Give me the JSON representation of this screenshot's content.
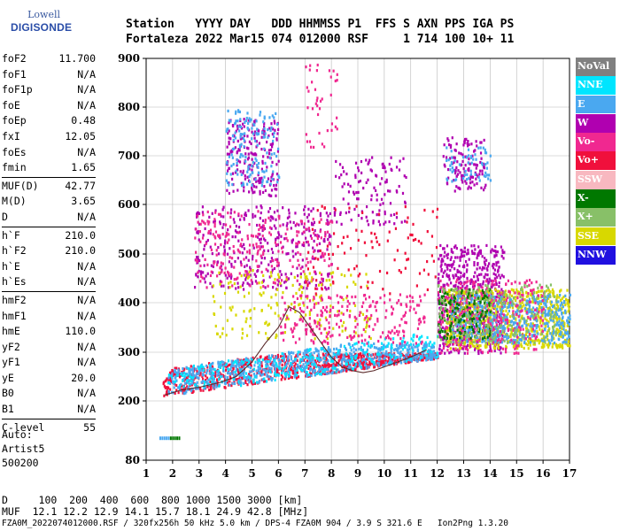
{
  "logo": {
    "line1": "Lowell",
    "line2": "DIGISONDE"
  },
  "header": {
    "line1": "Station   YYYY DAY   DDD HHMMSS P1  FFS S AXN PPS IGA PS",
    "line2": "Fortaleza 2022 Mar15 074 012000 RSF     1 714 100 10+ 11"
  },
  "params_group1": [
    {
      "name": "foF2",
      "value": "11.700"
    },
    {
      "name": "foF1",
      "value": "N/A"
    },
    {
      "name": "foF1p",
      "value": "N/A"
    },
    {
      "name": "foE",
      "value": "N/A"
    },
    {
      "name": "foEp",
      "value": "0.48"
    },
    {
      "name": "fxI",
      "value": "12.05"
    },
    {
      "name": "foEs",
      "value": "N/A"
    },
    {
      "name": "fmin",
      "value": "1.65"
    }
  ],
  "params_group2": [
    {
      "name": "MUF(D)",
      "value": "42.77"
    },
    {
      "name": "M(D)",
      "value": "3.65"
    },
    {
      "name": "D",
      "value": "N/A"
    }
  ],
  "params_group3": [
    {
      "name": "h`F",
      "value": "210.0"
    },
    {
      "name": "h`F2",
      "value": "210.0"
    },
    {
      "name": "h`E",
      "value": "N/A"
    },
    {
      "name": "h`Es",
      "value": "N/A"
    }
  ],
  "params_group4": [
    {
      "name": "hmF2",
      "value": "N/A"
    },
    {
      "name": "hmF1",
      "value": "N/A"
    },
    {
      "name": "hmE",
      "value": "110.0"
    },
    {
      "name": "yF2",
      "value": "N/A"
    },
    {
      "name": "yF1",
      "value": "N/A"
    },
    {
      "name": "yE",
      "value": "20.0"
    },
    {
      "name": "B0",
      "value": "N/A"
    },
    {
      "name": "B1",
      "value": "N/A"
    }
  ],
  "params_group5": [
    {
      "name": "C-level",
      "value": "55"
    }
  ],
  "auto": {
    "line1": "Auto:",
    "line2": "Artist5",
    "line3": "500200"
  },
  "legend": [
    {
      "label": "NoVal",
      "color": "#808080"
    },
    {
      "label": "NNE",
      "color": "#00e5ff"
    },
    {
      "label": "E",
      "color": "#4aa8f0"
    },
    {
      "label": "W",
      "color": "#b000b0"
    },
    {
      "label": "Vo-",
      "color": "#f02890"
    },
    {
      "label": "Vo+",
      "color": "#f0103c"
    },
    {
      "label": "SSW",
      "color": "#f8b8c0"
    },
    {
      "label": "X-",
      "color": "#007800"
    },
    {
      "label": "X+",
      "color": "#88c068"
    },
    {
      "label": "SSE",
      "color": "#d8d800"
    },
    {
      "label": "NNW",
      "color": "#2010e0"
    }
  ],
  "footer": {
    "line1": "D     100  200  400  600  800 1000 1500 3000 [km]",
    "line2": "MUF  12.1 12.2 12.9 14.1 15.7 18.1 24.9 42.8 [MHz]",
    "line3": "FZA0M_2022074012000.RSF / 320fx256h 50 kHz 5.0 km / DPS-4 FZA0M 904 / 3.9 S 321.6 E   Ion2Png 1.3.20"
  },
  "chart_data": {
    "type": "scatter",
    "xlim": [
      1,
      17
    ],
    "ylim": [
      80,
      900
    ],
    "xticks": [
      "1",
      "2",
      "3",
      "4",
      "5",
      "6",
      "7",
      "8",
      "9",
      "10",
      "11",
      "12",
      "13",
      "14",
      "15",
      "16",
      "17"
    ],
    "yticks": [
      "900",
      "800",
      "700",
      "600",
      "500",
      "400",
      "300",
      "200",
      "80"
    ],
    "grid": true,
    "trace": {
      "name": "",
      "x": [
        1.7,
        2.3,
        3.0,
        3.8,
        4.4,
        5.0,
        5.5,
        6.0,
        6.4,
        6.8,
        7.2,
        7.6,
        8.0,
        8.4,
        8.8,
        9.2,
        9.6,
        10.0,
        10.5,
        11.0,
        11.6
      ],
      "y": [
        212,
        222,
        228,
        238,
        250,
        280,
        318,
        350,
        392,
        380,
        350,
        320,
        290,
        270,
        262,
        258,
        262,
        270,
        280,
        290,
        305
      ]
    },
    "clusters": [
      {
        "color": "#f0103c",
        "x": [
          1.6,
          12.0
        ],
        "y": [
          210,
          300
        ],
        "n": 900
      },
      {
        "color": "#4aa8f0",
        "x": [
          1.8,
          12.0
        ],
        "y": [
          215,
          320
        ],
        "n": 700
      },
      {
        "color": "#00e5ff",
        "x": [
          1.8,
          12.0
        ],
        "y": [
          230,
          360
        ],
        "n": 250
      },
      {
        "color": "#b000b0",
        "x": [
          12.0,
          14.5
        ],
        "y": [
          300,
          520
        ],
        "n": 600
      },
      {
        "color": "#d8d800",
        "x": [
          12.3,
          17.0
        ],
        "y": [
          310,
          430
        ],
        "n": 800
      },
      {
        "color": "#4aa8f0",
        "x": [
          12.5,
          17.0
        ],
        "y": [
          320,
          420
        ],
        "n": 500
      },
      {
        "color": "#f02890",
        "x": [
          12.0,
          16.0
        ],
        "y": [
          300,
          450
        ],
        "n": 300
      },
      {
        "color": "#007800",
        "x": [
          12.0,
          14.0
        ],
        "y": [
          330,
          430
        ],
        "n": 150
      },
      {
        "color": "#88c068",
        "x": [
          12.0,
          16.5
        ],
        "y": [
          320,
          440
        ],
        "n": 200
      },
      {
        "color": "#b000b0",
        "x": [
          2.8,
          8.0
        ],
        "y": [
          430,
          600
        ],
        "n": 350
      },
      {
        "color": "#f02890",
        "x": [
          2.8,
          8.0
        ],
        "y": [
          430,
          590
        ],
        "n": 250
      },
      {
        "color": "#d8d800",
        "x": [
          3.5,
          9.5
        ],
        "y": [
          330,
          470
        ],
        "n": 180
      },
      {
        "color": "#f02890",
        "x": [
          6.0,
          11.5
        ],
        "y": [
          320,
          420
        ],
        "n": 250
      },
      {
        "color": "#b000b0",
        "x": [
          4.0,
          6.0
        ],
        "y": [
          620,
          780
        ],
        "n": 200
      },
      {
        "color": "#4aa8f0",
        "x": [
          4.0,
          6.0
        ],
        "y": [
          640,
          800
        ],
        "n": 150
      },
      {
        "color": "#b000b0",
        "x": [
          8.0,
          10.8
        ],
        "y": [
          560,
          700
        ],
        "n": 120
      },
      {
        "color": "#b000b0",
        "x": [
          12.2,
          13.8
        ],
        "y": [
          630,
          740
        ],
        "n": 120
      },
      {
        "color": "#4aa8f0",
        "x": [
          12.3,
          14.0
        ],
        "y": [
          650,
          720
        ],
        "n": 60
      },
      {
        "color": "#f02890",
        "x": [
          7.0,
          8.2
        ],
        "y": [
          720,
          890
        ],
        "n": 40
      },
      {
        "color": "#f0103c",
        "x": [
          7.0,
          12.0
        ],
        "y": [
          420,
          600
        ],
        "n": 100
      }
    ],
    "points_low": [
      {
        "color": "#4aa8f0",
        "x": 1.5,
        "y": 128
      },
      {
        "color": "#007800",
        "x": 1.9,
        "y": 128
      }
    ]
  }
}
